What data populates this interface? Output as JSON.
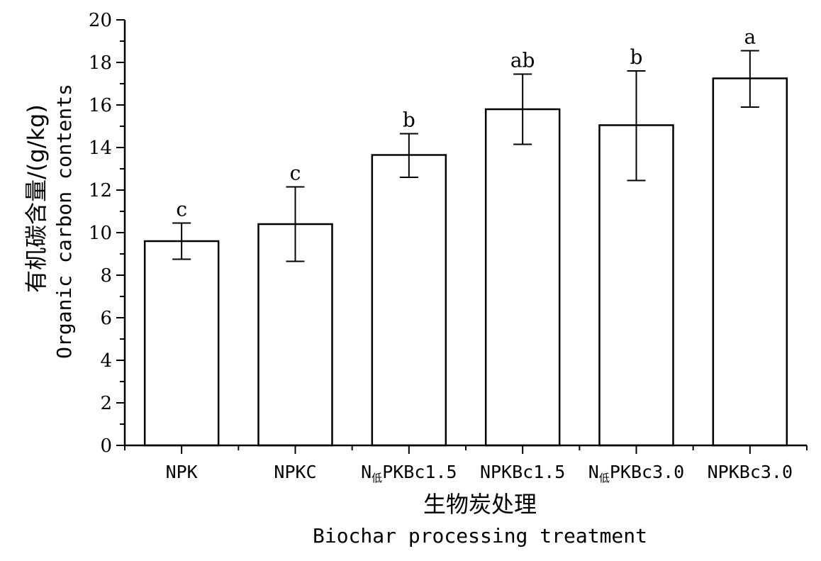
{
  "chart_data": {
    "type": "bar",
    "categories": [
      {
        "main": "NPK",
        "sub": "",
        "rest": ""
      },
      {
        "main": "NPKC",
        "sub": "",
        "rest": ""
      },
      {
        "main": "N",
        "sub": "低",
        "rest": "PKBc1.5"
      },
      {
        "main": "NPKBc1.5",
        "sub": "",
        "rest": ""
      },
      {
        "main": "N",
        "sub": "低",
        "rest": "PKBc3.0"
      },
      {
        "main": "NPKBc3.0",
        "sub": "",
        "rest": ""
      }
    ],
    "values": [
      9.6,
      10.4,
      13.65,
      15.8,
      15.05,
      17.25
    ],
    "error": [
      [
        8.75,
        10.45
      ],
      [
        8.65,
        12.15
      ],
      [
        12.6,
        14.65
      ],
      [
        14.15,
        17.45
      ],
      [
        12.45,
        17.6
      ],
      [
        15.9,
        18.55
      ]
    ],
    "significance": [
      "c",
      "c",
      "b",
      "ab",
      "b",
      "a"
    ],
    "ylim": [
      0,
      20
    ],
    "yticks": [
      0,
      2,
      4,
      6,
      8,
      10,
      12,
      14,
      16,
      18,
      20
    ],
    "ylabel_cn": "有机碳含量/(g/kg)",
    "ylabel_en": "Organic carbon contents",
    "xlabel_cn": "生物炭处理",
    "xlabel_en": "Biochar processing treatment",
    "bar_fill": "#ffffff",
    "bar_stroke": "#000000",
    "grid": false
  }
}
